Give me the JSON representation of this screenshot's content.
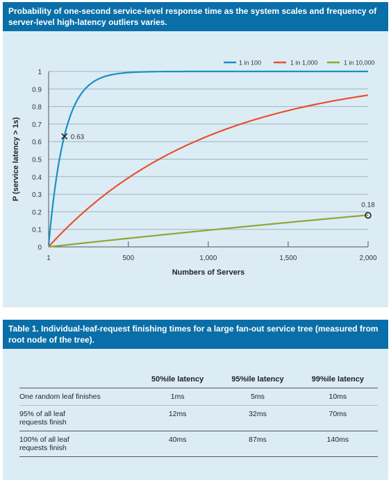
{
  "chart_panel": {
    "title": "Probability of one-second service-level response time as the system scales and frequency of server-level high-latency outliers varies."
  },
  "chart_data": {
    "type": "line",
    "title": "Probability of one-second service-level response time as the system scales and frequency of server-level high-latency outliers varies.",
    "xlabel": "Numbers of Servers",
    "ylabel": "P (service latency > 1s)",
    "xlim": [
      1,
      2000
    ],
    "ylim": [
      0,
      1
    ],
    "x_ticks": [
      "1",
      "500",
      "1,000",
      "1,500",
      "2,000"
    ],
    "y_ticks": [
      "0",
      "0.1",
      "0.2",
      "0.3",
      "0.4",
      "0.5",
      "0.6",
      "0.7",
      "0.8",
      "0.9",
      "1"
    ],
    "legend_position": "top-right",
    "series": [
      {
        "name": "1 in 100",
        "color": "#1a8fc5",
        "p": 0.01
      },
      {
        "name": "1 in 1,000",
        "color": "#e8502e",
        "p": 0.001
      },
      {
        "name": "1 in 10,000",
        "color": "#8ea634",
        "p": 0.0001
      }
    ],
    "annotations": [
      {
        "label": "0.63",
        "x": 100,
        "y": 0.63,
        "marker": "x"
      },
      {
        "label": "0.18",
        "x": 2000,
        "y": 0.18,
        "marker": "o"
      }
    ]
  },
  "table_panel": {
    "title": "Table 1. Individual-leaf-request finishing times for a large fan-out service tree (measured from root node of the tree).",
    "columns": [
      "50%ile latency",
      "95%ile latency",
      "99%ile latency"
    ],
    "rows": [
      {
        "label": "One random leaf finishes",
        "values": [
          "1ms",
          "5ms",
          "10ms"
        ]
      },
      {
        "label": "95% of all leaf requests finish",
        "values": [
          "12ms",
          "32ms",
          "70ms"
        ]
      },
      {
        "label": "100% of all leaf requests finish",
        "values": [
          "40ms",
          "87ms",
          "140ms"
        ]
      }
    ]
  }
}
